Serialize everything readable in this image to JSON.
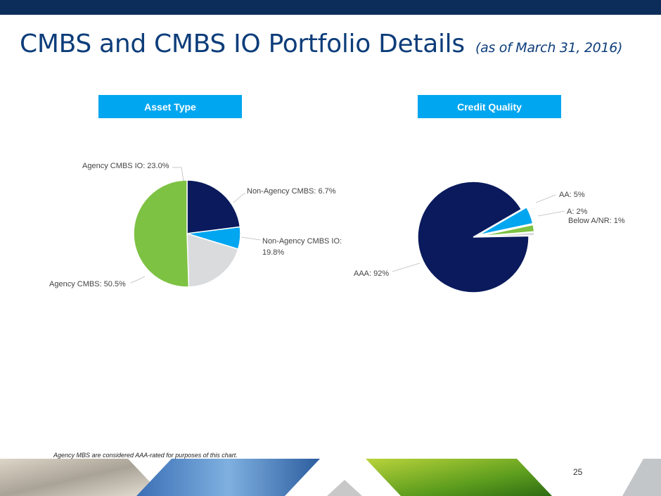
{
  "title": "CMBS and CMBS IO Portfolio Details",
  "subtitle": "(as of March 31, 2016)",
  "asset_type_header": "Asset Type",
  "credit_quality_header": "Credit Quality",
  "footnote": "Agency MBS are considered AAA-rated for purposes of this chart.",
  "page_number": "25",
  "chart_data": [
    {
      "type": "pie",
      "title": "Asset Type",
      "slices": [
        {
          "label": "Agency CMBS IO: 23.0%",
          "value": 23.0,
          "color": "#0a1a5c"
        },
        {
          "label": "Non-Agency CMBS: 6.7%",
          "value": 6.7,
          "color": "#00a6ef"
        },
        {
          "label": "Non-Agency CMBS IO: 19.8%",
          "value": 19.8,
          "color": "#d9dbdd"
        },
        {
          "label": "Agency CMBS: 50.5%",
          "value": 50.5,
          "color": "#7dc243"
        }
      ]
    },
    {
      "type": "pie",
      "title": "Credit Quality",
      "slices": [
        {
          "label": "AA: 5%",
          "value": 5,
          "color": "#00a6ef"
        },
        {
          "label": "A: 2%",
          "value": 2,
          "color": "#7dc243"
        },
        {
          "label": "Below A/NR: 1%",
          "value": 1,
          "color": "#d9dbdd"
        },
        {
          "label": "AAA: 92%",
          "value": 92,
          "color": "#0a1a5c"
        }
      ]
    }
  ]
}
